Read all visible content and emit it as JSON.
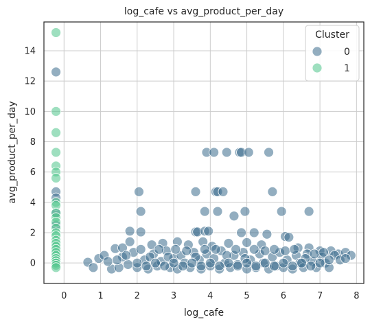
{
  "chart_data": {
    "type": "scatter",
    "title": "log_cafe vs avg_product_per_day",
    "xlabel": "log_cafe",
    "ylabel": "avg_product_per_day",
    "xlim": [
      -0.55,
      8.2
    ],
    "ylim": [
      -1.35,
      15.9
    ],
    "xticks": [
      "0",
      "1",
      "2",
      "3",
      "4",
      "5",
      "6",
      "7",
      "8"
    ],
    "yticks": [
      "0",
      "2",
      "4",
      "6",
      "8",
      "10",
      "12",
      "14"
    ],
    "grid": true,
    "legend": {
      "title": "Cluster",
      "placement": "top-right"
    },
    "series": [
      {
        "name": "0",
        "color": "#3b6b8c",
        "points": [
          [
            3.9,
            7.3
          ],
          [
            4.1,
            7.3
          ],
          [
            4.45,
            7.3
          ],
          [
            4.8,
            7.3
          ],
          [
            4.85,
            7.3
          ],
          [
            5.05,
            7.3
          ],
          [
            5.6,
            7.3
          ],
          [
            2.05,
            4.7
          ],
          [
            3.6,
            4.7
          ],
          [
            4.15,
            4.7
          ],
          [
            4.2,
            4.7
          ],
          [
            4.35,
            4.7
          ],
          [
            5.7,
            4.7
          ],
          [
            2.1,
            3.4
          ],
          [
            3.85,
            3.4
          ],
          [
            4.2,
            3.4
          ],
          [
            4.95,
            3.4
          ],
          [
            5.95,
            3.4
          ],
          [
            6.7,
            3.4
          ],
          [
            4.65,
            3.1
          ],
          [
            4.85,
            2.0
          ],
          [
            3.6,
            2.05
          ],
          [
            3.65,
            2.05
          ],
          [
            3.85,
            2.1
          ],
          [
            3.95,
            2.1
          ],
          [
            2.1,
            2.05
          ],
          [
            1.8,
            2.1
          ],
          [
            5.2,
            2.0
          ],
          [
            5.55,
            1.9
          ],
          [
            6.05,
            1.75
          ],
          [
            6.15,
            1.7
          ],
          [
            1.4,
            0.95
          ],
          [
            1.6,
            1.0
          ],
          [
            1.8,
            1.4
          ],
          [
            2.4,
            1.2
          ],
          [
            2.7,
            1.3
          ],
          [
            3.1,
            1.4
          ],
          [
            3.4,
            1.2
          ],
          [
            3.8,
            1.4
          ],
          [
            4.05,
            1.1
          ],
          [
            4.5,
            1.3
          ],
          [
            5.0,
            1.35
          ],
          [
            5.4,
            1.2
          ],
          [
            6.4,
            1.0
          ],
          [
            6.7,
            1.0
          ],
          [
            7.0,
            0.8
          ],
          [
            7.3,
            0.8
          ],
          [
            7.5,
            0.6
          ],
          [
            7.7,
            0.7
          ],
          [
            7.85,
            0.5
          ],
          [
            0.65,
            0.05
          ],
          [
            0.8,
            -0.3
          ],
          [
            0.95,
            0.3
          ],
          [
            1.1,
            0.5
          ],
          [
            1.3,
            -0.4
          ],
          [
            1.5,
            -0.3
          ],
          [
            1.6,
            0.4
          ],
          [
            1.75,
            -0.1
          ],
          [
            1.9,
            0.7
          ],
          [
            2.0,
            -0.3
          ],
          [
            2.2,
            0.2
          ],
          [
            2.3,
            -0.4
          ],
          [
            2.45,
            0.6
          ],
          [
            2.55,
            -0.2
          ],
          [
            2.65,
            0.1
          ],
          [
            2.8,
            0.8
          ],
          [
            2.9,
            -0.3
          ],
          [
            3.0,
            0.3
          ],
          [
            3.1,
            -0.4
          ],
          [
            3.2,
            0.5
          ],
          [
            3.3,
            0.0
          ],
          [
            3.45,
            -0.3
          ],
          [
            3.55,
            0.7
          ],
          [
            3.7,
            0.2
          ],
          [
            3.75,
            -0.4
          ],
          [
            3.9,
            0.6
          ],
          [
            4.0,
            -0.2
          ],
          [
            4.1,
            0.3
          ],
          [
            4.25,
            -0.4
          ],
          [
            4.3,
            0.8
          ],
          [
            4.4,
            0.0
          ],
          [
            4.55,
            -0.3
          ],
          [
            4.65,
            0.5
          ],
          [
            4.75,
            -0.1
          ],
          [
            4.9,
            0.7
          ],
          [
            5.0,
            -0.4
          ],
          [
            5.1,
            0.2
          ],
          [
            5.25,
            -0.3
          ],
          [
            5.35,
            0.6
          ],
          [
            5.45,
            0.0
          ],
          [
            5.6,
            -0.4
          ],
          [
            5.7,
            0.4
          ],
          [
            5.8,
            -0.2
          ],
          [
            5.9,
            0.7
          ],
          [
            6.0,
            -0.3
          ],
          [
            6.1,
            0.2
          ],
          [
            6.25,
            -0.4
          ],
          [
            6.35,
            0.5
          ],
          [
            6.45,
            0.0
          ],
          [
            6.55,
            -0.3
          ],
          [
            6.65,
            0.6
          ],
          [
            6.8,
            0.1
          ],
          [
            6.9,
            -0.3
          ],
          [
            7.05,
            0.4
          ],
          [
            7.15,
            0.0
          ],
          [
            7.25,
            -0.3
          ],
          [
            7.4,
            0.5
          ],
          [
            7.55,
            0.2
          ],
          [
            7.7,
            0.3
          ],
          [
            1.2,
            0.1
          ],
          [
            1.45,
            0.2
          ],
          [
            1.7,
            0.5
          ],
          [
            2.1,
            0.9
          ],
          [
            2.35,
            0.4
          ],
          [
            2.6,
            0.9
          ],
          [
            2.85,
            0.4
          ],
          [
            3.05,
            0.9
          ],
          [
            3.35,
            0.8
          ],
          [
            3.6,
            0.4
          ],
          [
            3.85,
            0.9
          ],
          [
            4.15,
            0.9
          ],
          [
            4.45,
            0.5
          ],
          [
            4.7,
            0.9
          ],
          [
            4.95,
            0.3
          ],
          [
            5.2,
            0.9
          ],
          [
            5.5,
            0.8
          ],
          [
            5.75,
            0.9
          ],
          [
            6.05,
            0.8
          ],
          [
            6.3,
            0.9
          ],
          [
            6.6,
            0.3
          ],
          [
            6.85,
            0.6
          ],
          [
            7.1,
            0.7
          ],
          [
            2.0,
            0.0
          ],
          [
            2.5,
            0.0
          ],
          [
            3.0,
            0.0
          ],
          [
            3.5,
            0.0
          ],
          [
            4.0,
            0.0
          ],
          [
            4.5,
            0.0
          ],
          [
            5.0,
            0.0
          ],
          [
            5.5,
            0.0
          ],
          [
            6.0,
            0.0
          ],
          [
            6.5,
            0.0
          ],
          [
            7.0,
            0.0
          ],
          [
            2.25,
            -0.2
          ],
          [
            2.75,
            -0.2
          ],
          [
            3.25,
            -0.2
          ],
          [
            3.75,
            -0.2
          ],
          [
            4.25,
            -0.2
          ],
          [
            4.75,
            -0.2
          ],
          [
            5.25,
            -0.2
          ],
          [
            5.75,
            -0.2
          ],
          [
            6.25,
            -0.2
          ],
          [
            6.75,
            -0.2
          ],
          [
            7.25,
            0.2
          ],
          [
            -0.22,
            12.6
          ],
          [
            -0.22,
            4.7
          ],
          [
            -0.22,
            3.3
          ],
          [
            -0.22,
            2.5
          ],
          [
            -0.22,
            4.3
          ]
        ]
      },
      {
        "name": "1",
        "color": "#4fc48a",
        "points": [
          [
            -0.22,
            15.2
          ],
          [
            -0.22,
            10.0
          ],
          [
            -0.22,
            8.6
          ],
          [
            -0.22,
            7.3
          ],
          [
            -0.22,
            6.4
          ],
          [
            -0.22,
            6.0
          ],
          [
            -0.22,
            5.6
          ],
          [
            -0.22,
            4.0
          ],
          [
            -0.22,
            3.8
          ],
          [
            -0.22,
            3.3
          ],
          [
            -0.22,
            3.0
          ],
          [
            -0.22,
            2.7
          ],
          [
            -0.22,
            2.3
          ],
          [
            -0.22,
            2.0
          ],
          [
            -0.22,
            1.8
          ],
          [
            -0.22,
            1.5
          ],
          [
            -0.22,
            1.3
          ],
          [
            -0.22,
            1.1
          ],
          [
            -0.22,
            0.9
          ],
          [
            -0.22,
            0.7
          ],
          [
            -0.22,
            0.5
          ],
          [
            -0.22,
            0.3
          ],
          [
            -0.22,
            0.15
          ],
          [
            -0.22,
            0.0
          ],
          [
            -0.22,
            -0.15
          ],
          [
            -0.22,
            -0.3
          ]
        ]
      }
    ]
  }
}
